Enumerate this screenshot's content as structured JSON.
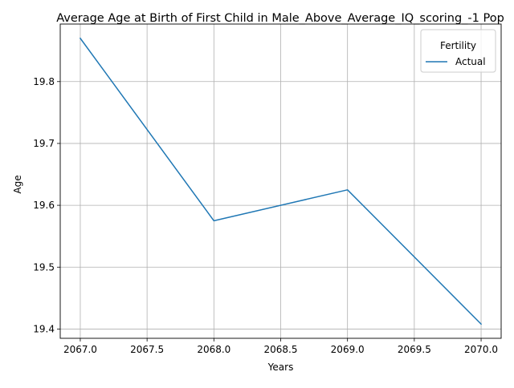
{
  "chart_data": {
    "type": "line",
    "title": "Average Age at Birth of First Child in Male_Above_Average_IQ_scoring_-1 Pop",
    "xlabel": "Years",
    "ylabel": "Age",
    "x": [
      2067,
      2068,
      2069,
      2070
    ],
    "series": [
      {
        "name": "Actual",
        "values": [
          19.87,
          19.575,
          19.625,
          19.408
        ],
        "color": "#1f77b4"
      }
    ],
    "xticks": [
      2067.0,
      2067.5,
      2068.0,
      2068.5,
      2069.0,
      2069.5,
      2070.0
    ],
    "xtick_labels": [
      "2067.0",
      "2067.5",
      "2068.0",
      "2068.5",
      "2069.0",
      "2069.5",
      "2070.0"
    ],
    "yticks": [
      19.4,
      19.5,
      19.6,
      19.7,
      19.8
    ],
    "ytick_labels": [
      "19.4",
      "19.5",
      "19.6",
      "19.7",
      "19.8"
    ],
    "xlim": [
      2066.85,
      2070.15
    ],
    "ylim": [
      19.385,
      19.893
    ],
    "grid": true,
    "legend": {
      "title": "Fertility",
      "placement": "top-right"
    }
  }
}
